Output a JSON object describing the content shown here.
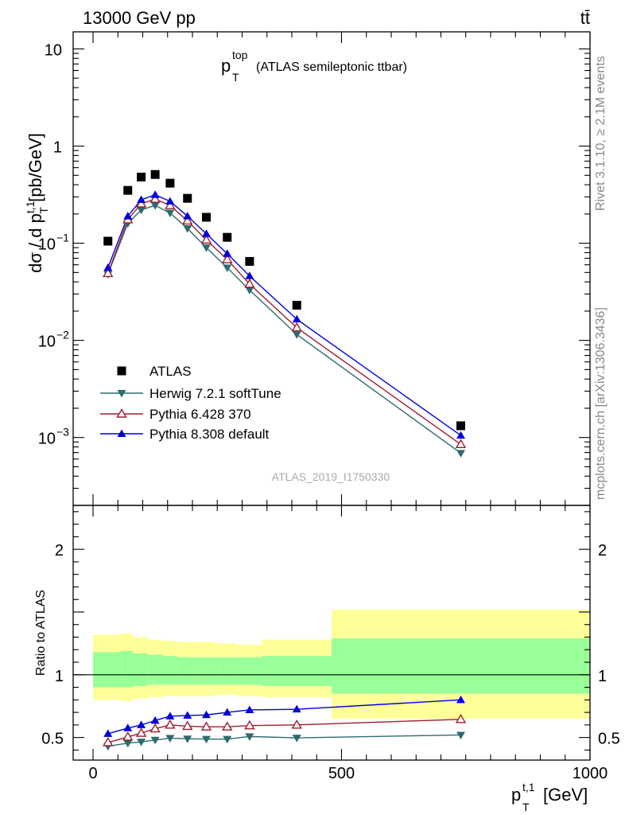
{
  "header": {
    "energy_label": "13000 GeV pp",
    "process_label": "tt̄",
    "title_main": "p",
    "title_sup": "top",
    "title_sub": "T",
    "title_rest": "(ATLAS semileptonic ttbar)",
    "analysis_id": "ATLAS_2019_I1750330",
    "rivet_label": "Rivet 3.1.10, ≥ 2.1M events",
    "mcplots_label": "mcplots.cern.ch [arXiv:1306.3436]"
  },
  "chart_data": [
    {
      "type": "line",
      "panel": "main",
      "y_scale": "log",
      "ylim": [
        0.0002,
        15
      ],
      "xlim": [
        -40,
        1000
      ],
      "ylabel": "dσ / d p_T^{t,1} [pb/GeV]",
      "y_ticks": [
        {
          "value": 0.001,
          "base": "10",
          "exp": "−3"
        },
        {
          "value": 0.01,
          "base": "10",
          "exp": "−2"
        },
        {
          "value": 0.1,
          "base": "10",
          "exp": "−1"
        },
        {
          "value": 1,
          "base": "1",
          "exp": ""
        },
        {
          "value": 10,
          "base": "10",
          "exp": ""
        }
      ],
      "x": [
        30,
        70,
        97,
        125,
        155,
        190,
        228,
        270,
        315,
        410,
        740
      ],
      "series": [
        {
          "name": "ATLAS",
          "color": "#000000",
          "marker": "square",
          "values": [
            0.105,
            0.35,
            0.48,
            0.51,
            0.415,
            0.29,
            0.185,
            0.115,
            0.065,
            0.023,
            0.00132
          ]
        },
        {
          "name": "Herwig 7.2.1 softTune",
          "color": "#2d6b70",
          "marker": "triangle-down",
          "values": [
            0.048,
            0.16,
            0.22,
            0.245,
            0.205,
            0.142,
            0.09,
            0.056,
            0.033,
            0.0115,
            0.00069
          ]
        },
        {
          "name": "Pythia 6.428 370",
          "color": "#a01e2e",
          "marker": "triangle-up-open",
          "values": [
            0.049,
            0.175,
            0.255,
            0.285,
            0.245,
            0.17,
            0.108,
            0.068,
            0.038,
            0.0135,
            0.00085
          ]
        },
        {
          "name": "Pythia 8.308 default",
          "color": "#0000dd",
          "marker": "triangle-up",
          "values": [
            0.056,
            0.19,
            0.28,
            0.315,
            0.27,
            0.19,
            0.125,
            0.078,
            0.046,
            0.0165,
            0.00105
          ]
        }
      ],
      "legend_position": "middle-left"
    },
    {
      "type": "line",
      "panel": "ratio",
      "ylim": [
        0.32,
        2.35
      ],
      "xlim": [
        -40,
        1000
      ],
      "ylabel": "Ratio to ATLAS",
      "xlabel_main": "p",
      "xlabel_sup": "t,1",
      "xlabel_sub": "T",
      "xlabel_unit": "[GeV]",
      "x_tick_labels": [
        "0",
        "500",
        "1000"
      ],
      "x_ticks": [
        0,
        500,
        1000
      ],
      "y_tick_labels": [
        "0.5",
        "1",
        "2"
      ],
      "y_ticks": [
        0.5,
        1,
        2
      ],
      "reference_line": 1,
      "bands": {
        "inner_color": "#99ff99",
        "outer_color": "#ffff99",
        "bins": [
          {
            "x0": 0,
            "x1": 55,
            "inner": [
              0.9,
              1.18
            ],
            "outer": [
              0.8,
              1.32
            ]
          },
          {
            "x0": 55,
            "x1": 80,
            "inner": [
              0.9,
              1.19
            ],
            "outer": [
              0.79,
              1.33
            ]
          },
          {
            "x0": 80,
            "x1": 110,
            "inner": [
              0.91,
              1.17
            ],
            "outer": [
              0.81,
              1.3
            ]
          },
          {
            "x0": 110,
            "x1": 140,
            "inner": [
              0.92,
              1.16
            ],
            "outer": [
              0.82,
              1.28
            ]
          },
          {
            "x0": 140,
            "x1": 170,
            "inner": [
              0.92,
              1.15
            ],
            "outer": [
              0.83,
              1.27
            ]
          },
          {
            "x0": 170,
            "x1": 210,
            "inner": [
              0.92,
              1.14
            ],
            "outer": [
              0.83,
              1.26
            ]
          },
          {
            "x0": 210,
            "x1": 250,
            "inner": [
              0.92,
              1.14
            ],
            "outer": [
              0.83,
              1.26
            ]
          },
          {
            "x0": 250,
            "x1": 290,
            "inner": [
              0.92,
              1.14
            ],
            "outer": [
              0.84,
              1.25
            ]
          },
          {
            "x0": 290,
            "x1": 340,
            "inner": [
              0.92,
              1.14
            ],
            "outer": [
              0.83,
              1.24
            ]
          },
          {
            "x0": 340,
            "x1": 480,
            "inner": [
              0.91,
              1.15
            ],
            "outer": [
              0.82,
              1.28
            ]
          },
          {
            "x0": 480,
            "x1": 1000,
            "inner": [
              0.85,
              1.29
            ],
            "outer": [
              0.65,
              1.52
            ]
          }
        ]
      },
      "x": [
        30,
        70,
        97,
        125,
        155,
        190,
        228,
        270,
        315,
        410,
        740
      ],
      "series": [
        {
          "name": "Herwig 7.2.1 softTune",
          "color": "#2d6b70",
          "marker": "triangle-down",
          "values": [
            0.43,
            0.455,
            0.465,
            0.48,
            0.495,
            0.49,
            0.487,
            0.487,
            0.508,
            0.497,
            0.52
          ]
        },
        {
          "name": "Pythia 6.428 370",
          "color": "#a01e2e",
          "marker": "triangle-up-open",
          "values": [
            0.46,
            0.505,
            0.535,
            0.57,
            0.6,
            0.59,
            0.585,
            0.585,
            0.595,
            0.6,
            0.645
          ]
        },
        {
          "name": "Pythia 8.308 default",
          "color": "#0000dd",
          "marker": "triangle-up",
          "values": [
            0.53,
            0.575,
            0.6,
            0.635,
            0.67,
            0.675,
            0.68,
            0.7,
            0.72,
            0.725,
            0.8
          ]
        }
      ]
    }
  ]
}
